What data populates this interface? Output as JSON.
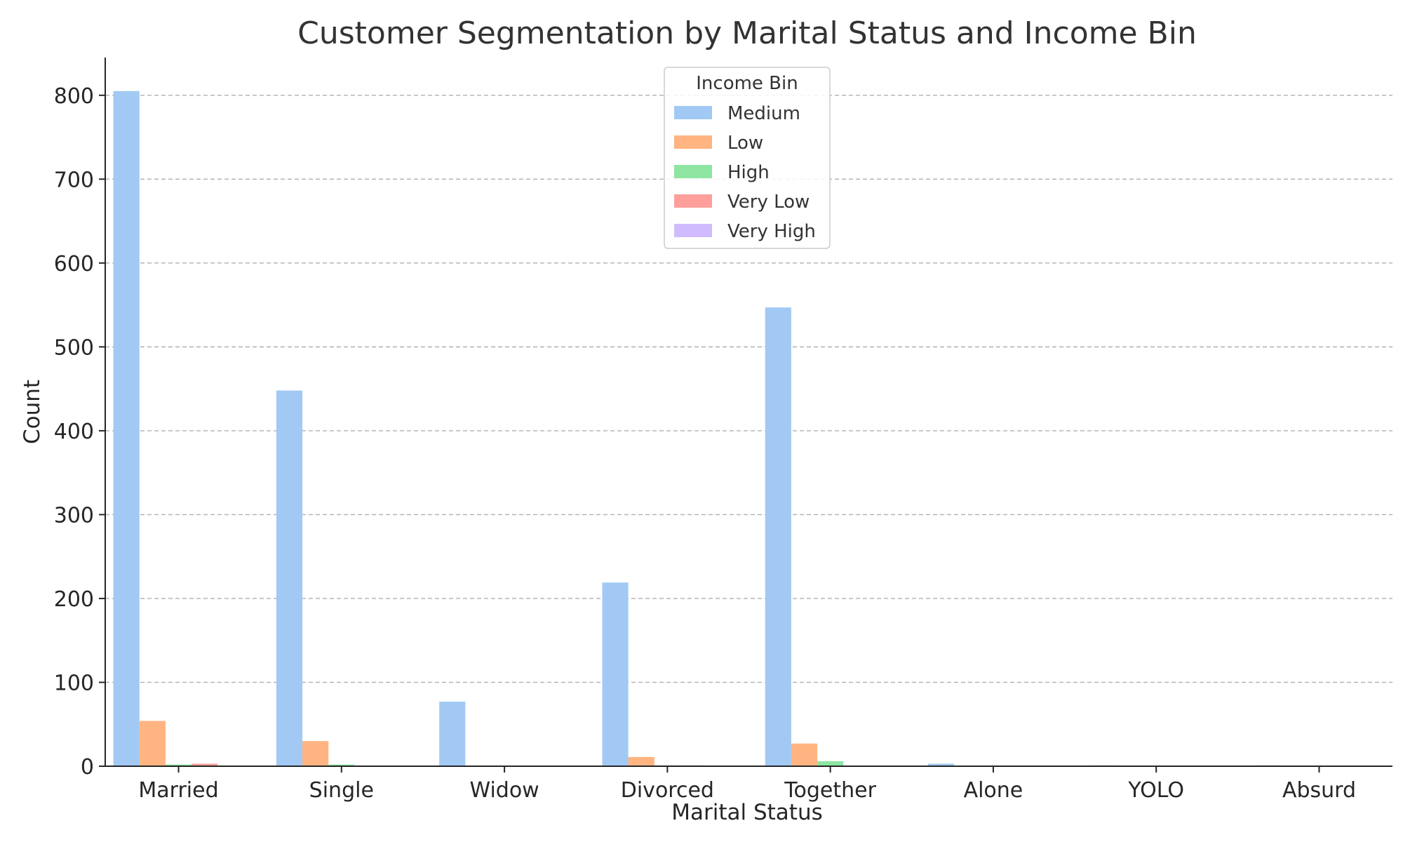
{
  "chart_data": {
    "type": "bar",
    "title": "Customer Segmentation by Marital Status and Income Bin",
    "xlabel": "Marital Status",
    "ylabel": "Count",
    "ylim": [
      0,
      845
    ],
    "yticks": [
      0,
      100,
      200,
      300,
      400,
      500,
      600,
      700,
      800
    ],
    "grid": "horizontal dashed",
    "legend_title": "Income Bin",
    "legend_position": "top-center",
    "categories": [
      "Married",
      "Single",
      "Widow",
      "Divorced",
      "Together",
      "Alone",
      "YOLO",
      "Absurd"
    ],
    "series": [
      {
        "name": "Medium",
        "color": "#a1c9f4",
        "values": [
          805,
          448,
          77,
          219,
          547,
          3,
          1,
          1
        ]
      },
      {
        "name": "Low",
        "color": "#ffb482",
        "values": [
          54,
          30,
          0,
          11,
          27,
          0,
          0,
          0
        ]
      },
      {
        "name": "High",
        "color": "#8de5a1",
        "values": [
          2,
          2,
          0,
          1,
          6,
          0,
          0,
          0
        ]
      },
      {
        "name": "Very Low",
        "color": "#ff9f9b",
        "values": [
          3,
          0,
          0,
          1,
          0,
          0,
          0,
          0
        ]
      },
      {
        "name": "Very High",
        "color": "#d0bbff",
        "values": [
          0,
          0,
          0,
          0,
          0,
          0,
          0,
          0
        ]
      }
    ]
  }
}
